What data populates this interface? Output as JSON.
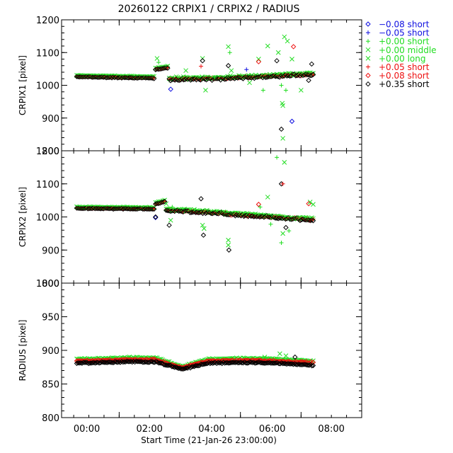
{
  "title": "20260122 CRPIX1 / CRPIX2 / RADIUS",
  "xlabel": "Start Time (21-Jan-26 23:00:00)",
  "x_ticks": [
    "00:00",
    "02:00",
    "04:00",
    "06:00",
    "08:00"
  ],
  "colors": {
    "blue": "#1010e0",
    "green": "#22dd22",
    "red": "#ee1010",
    "black": "#000000"
  },
  "legend": [
    {
      "symbol": "diamond",
      "color": "#1010e0",
      "offset": "−0.08",
      "label": "short"
    },
    {
      "symbol": "plus",
      "color": "#1010e0",
      "offset": "−0.05",
      "label": "short"
    },
    {
      "symbol": "plus",
      "color": "#22dd22",
      "offset": "+0.00",
      "label": "short"
    },
    {
      "symbol": "cross",
      "color": "#22dd22",
      "offset": "+0.00",
      "label": "middle"
    },
    {
      "symbol": "cross",
      "color": "#22dd22",
      "offset": "+0.00",
      "label": "long"
    },
    {
      "symbol": "plus",
      "color": "#ee1010",
      "offset": "+0.05",
      "label": "short"
    },
    {
      "symbol": "diamond",
      "color": "#ee1010",
      "offset": "+0.08",
      "label": "short"
    },
    {
      "symbol": "diamond",
      "color": "#000000",
      "offset": "+0.35",
      "label": "short"
    }
  ],
  "chart_data": [
    {
      "type": "scatter",
      "ylabel": "CRPIX1 [pixel]",
      "xlim": [
        -0.9,
        9.0
      ],
      "ylim": [
        800,
        1200
      ],
      "yticks": [
        800,
        900,
        1000,
        1100,
        1200
      ],
      "segments": [
        {
          "x_start": -0.4,
          "x_end": 2.15,
          "y_start": 1028,
          "y_end": 1024
        },
        {
          "x_start": 2.2,
          "x_end": 2.6,
          "y_start": 1050,
          "y_end": 1056
        },
        {
          "x_start": 2.65,
          "x_end": 4.3,
          "y_start": 1020,
          "y_end": 1022
        },
        {
          "x_start": 4.3,
          "x_end": 6.2,
          "y_start": 1022,
          "y_end": 1030
        },
        {
          "x_start": 6.2,
          "x_end": 7.4,
          "y_start": 1030,
          "y_end": 1035
        }
      ],
      "outliers": [
        {
          "x": 2.25,
          "y": 1082,
          "series": "green-cross"
        },
        {
          "x": 2.3,
          "y": 1070,
          "series": "green-plus"
        },
        {
          "x": 2.7,
          "y": 988,
          "series": "blue-diamond"
        },
        {
          "x": 3.2,
          "y": 1045,
          "series": "green-cross"
        },
        {
          "x": 3.75,
          "y": 1082,
          "series": "green-cross"
        },
        {
          "x": 3.75,
          "y": 1075,
          "series": "black-diamond"
        },
        {
          "x": 3.7,
          "y": 1058,
          "series": "red-plus"
        },
        {
          "x": 3.85,
          "y": 985,
          "series": "green-cross"
        },
        {
          "x": 4.15,
          "y": 1025,
          "series": "green-plus"
        },
        {
          "x": 4.6,
          "y": 1118,
          "series": "green-cross"
        },
        {
          "x": 4.65,
          "y": 1100,
          "series": "green-plus"
        },
        {
          "x": 4.6,
          "y": 1060,
          "series": "black-diamond"
        },
        {
          "x": 4.7,
          "y": 1045,
          "series": "green-cross"
        },
        {
          "x": 5.2,
          "y": 1048,
          "series": "blue-plus"
        },
        {
          "x": 5.3,
          "y": 1008,
          "series": "green-cross"
        },
        {
          "x": 5.6,
          "y": 1080,
          "series": "green-cross"
        },
        {
          "x": 5.6,
          "y": 1072,
          "series": "red-diamond"
        },
        {
          "x": 5.75,
          "y": 985,
          "series": "green-plus"
        },
        {
          "x": 5.9,
          "y": 1120,
          "series": "green-cross"
        },
        {
          "x": 6.2,
          "y": 1075,
          "series": "black-diamond"
        },
        {
          "x": 6.25,
          "y": 1100,
          "series": "green-cross"
        },
        {
          "x": 6.35,
          "y": 1000,
          "series": "green-plus"
        },
        {
          "x": 6.38,
          "y": 945,
          "series": "green-cross"
        },
        {
          "x": 6.4,
          "y": 938,
          "series": "green-cross"
        },
        {
          "x": 6.45,
          "y": 1148,
          "series": "green-cross"
        },
        {
          "x": 6.55,
          "y": 1135,
          "series": "green-cross"
        },
        {
          "x": 6.35,
          "y": 866,
          "series": "black-diamond"
        },
        {
          "x": 6.4,
          "y": 838,
          "series": "green-cross"
        },
        {
          "x": 6.5,
          "y": 985,
          "series": "green-plus"
        },
        {
          "x": 6.75,
          "y": 1118,
          "series": "red-diamond"
        },
        {
          "x": 6.7,
          "y": 1080,
          "series": "green-cross"
        },
        {
          "x": 6.7,
          "y": 890,
          "series": "blue-diamond"
        },
        {
          "x": 7.0,
          "y": 985,
          "series": "green-cross"
        },
        {
          "x": 7.25,
          "y": 1015,
          "series": "black-diamond"
        },
        {
          "x": 7.35,
          "y": 1065,
          "series": "black-diamond"
        }
      ]
    },
    {
      "type": "scatter",
      "ylabel": "CRPIX2 [pixel]",
      "xlim": [
        -0.9,
        9.0
      ],
      "ylim": [
        800,
        1200
      ],
      "yticks": [
        800,
        900,
        1000,
        1100,
        1200
      ],
      "segments": [
        {
          "x_start": -0.4,
          "x_end": 2.15,
          "y_start": 1028,
          "y_end": 1026
        },
        {
          "x_start": 2.2,
          "x_end": 2.5,
          "y_start": 1040,
          "y_end": 1048
        },
        {
          "x_start": 2.55,
          "x_end": 4.5,
          "y_start": 1022,
          "y_end": 1012
        },
        {
          "x_start": 4.5,
          "x_end": 6.2,
          "y_start": 1010,
          "y_end": 1000
        },
        {
          "x_start": 6.2,
          "x_end": 7.4,
          "y_start": 1000,
          "y_end": 992
        }
      ],
      "outliers": [
        {
          "x": 2.2,
          "y": 998,
          "series": "blue-diamond"
        },
        {
          "x": 2.2,
          "y": 1000,
          "series": "black-diamond"
        },
        {
          "x": 2.55,
          "y": 1040,
          "series": "green-cross"
        },
        {
          "x": 2.65,
          "y": 975,
          "series": "black-diamond"
        },
        {
          "x": 2.7,
          "y": 990,
          "series": "green-cross"
        },
        {
          "x": 2.75,
          "y": 1030,
          "series": "green-plus"
        },
        {
          "x": 3.7,
          "y": 1055,
          "series": "black-diamond"
        },
        {
          "x": 3.75,
          "y": 975,
          "series": "green-cross"
        },
        {
          "x": 3.8,
          "y": 965,
          "series": "green-cross"
        },
        {
          "x": 3.78,
          "y": 945,
          "series": "black-diamond"
        },
        {
          "x": 4.6,
          "y": 930,
          "series": "green-cross"
        },
        {
          "x": 4.6,
          "y": 915,
          "series": "green-cross"
        },
        {
          "x": 4.62,
          "y": 900,
          "series": "black-diamond"
        },
        {
          "x": 5.6,
          "y": 1038,
          "series": "red-diamond"
        },
        {
          "x": 5.65,
          "y": 1030,
          "series": "green-plus"
        },
        {
          "x": 5.9,
          "y": 1060,
          "series": "green-cross"
        },
        {
          "x": 6.0,
          "y": 978,
          "series": "green-plus"
        },
        {
          "x": 6.2,
          "y": 1180,
          "series": "green-plus"
        },
        {
          "x": 6.45,
          "y": 1165,
          "series": "green-cross"
        },
        {
          "x": 6.35,
          "y": 1100,
          "series": "black-diamond"
        },
        {
          "x": 6.4,
          "y": 1100,
          "series": "red-plus"
        },
        {
          "x": 6.4,
          "y": 950,
          "series": "green-cross"
        },
        {
          "x": 6.35,
          "y": 922,
          "series": "green-plus"
        },
        {
          "x": 6.5,
          "y": 968,
          "series": "black-diamond"
        },
        {
          "x": 6.6,
          "y": 958,
          "series": "green-plus"
        },
        {
          "x": 7.25,
          "y": 1040,
          "series": "red-diamond"
        },
        {
          "x": 7.3,
          "y": 1045,
          "series": "green-cross"
        },
        {
          "x": 7.4,
          "y": 1038,
          "series": "green-cross"
        }
      ]
    },
    {
      "type": "scatter",
      "ylabel": "RADIUS [pixel]",
      "xlabel": "Start Time (21-Jan-26 23:00:00)",
      "xlim": [
        -0.9,
        9.0
      ],
      "ylim": [
        800,
        1000
      ],
      "yticks": [
        800,
        850,
        900,
        950,
        1000
      ],
      "bands": [
        {
          "series": "green",
          "x_start": -0.4,
          "x_end": 7.4,
          "y_values": [
            887,
            888,
            889,
            889,
            876,
            887,
            888,
            888,
            886,
            884
          ]
        },
        {
          "series": "red",
          "x_start": -0.4,
          "x_end": 7.4,
          "y_values": [
            884,
            885,
            886,
            886,
            874,
            884,
            885,
            885,
            883,
            882
          ]
        },
        {
          "series": "black",
          "x_start": -0.4,
          "x_end": 7.4,
          "y_values": [
            881,
            882,
            883,
            883,
            872,
            881,
            882,
            882,
            880,
            878
          ]
        }
      ],
      "outliers": [
        {
          "x": 6.3,
          "y": 895,
          "series": "green-cross"
        },
        {
          "x": 6.5,
          "y": 892,
          "series": "green-cross"
        },
        {
          "x": 5.8,
          "y": 890,
          "series": "green-cross"
        },
        {
          "x": 6.8,
          "y": 890,
          "series": "black-diamond"
        }
      ]
    }
  ]
}
